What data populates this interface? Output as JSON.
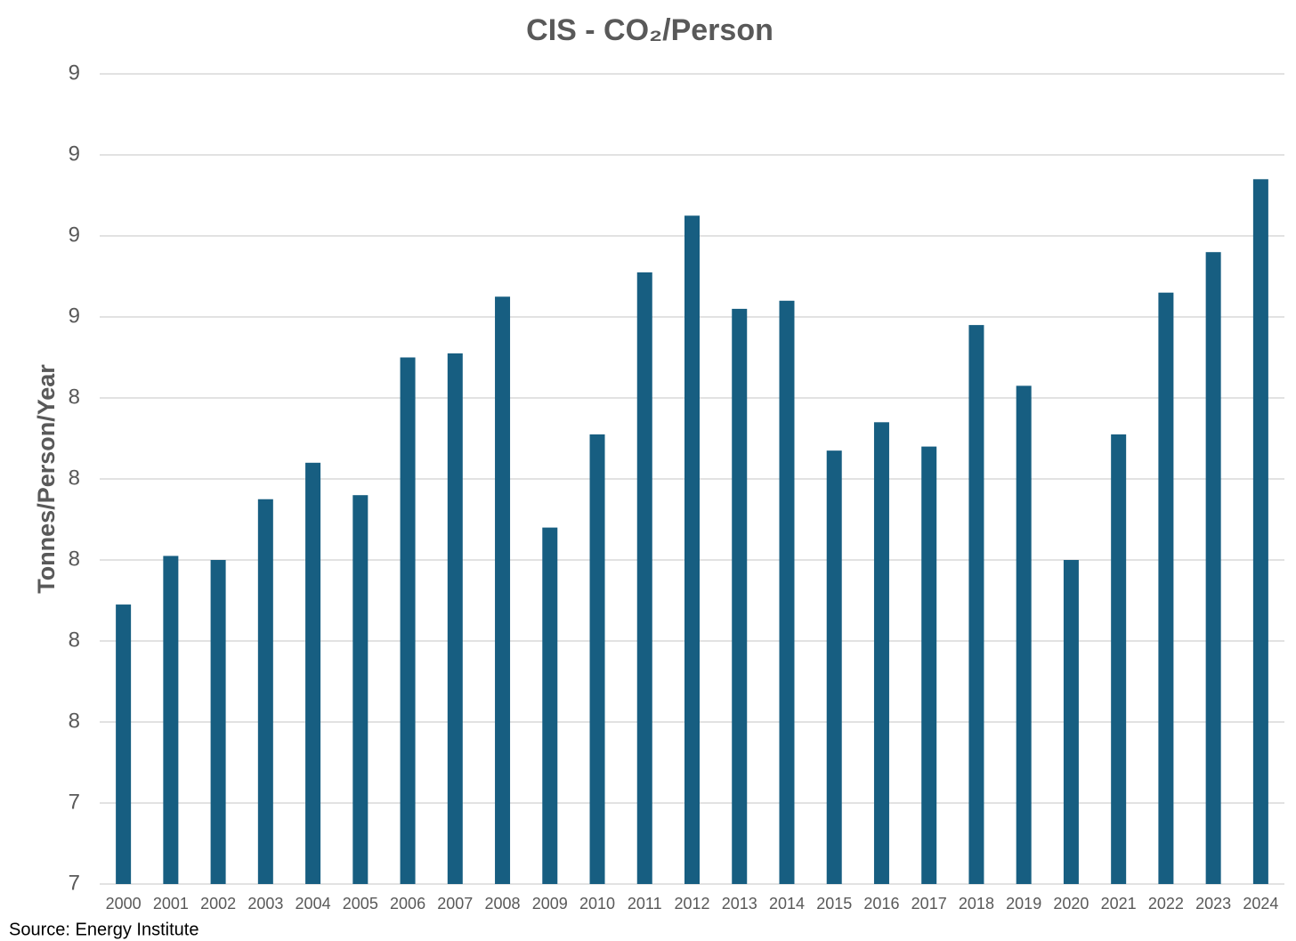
{
  "chart_data": {
    "type": "bar",
    "title": "CIS - CO₂/Person",
    "y_label": "Tonnes/Person/Year",
    "source": "Source: Energy Institute",
    "categories": [
      "2000",
      "2001",
      "2002",
      "2003",
      "2004",
      "2005",
      "2006",
      "2007",
      "2008",
      "2009",
      "2010",
      "2011",
      "2012",
      "2013",
      "2014",
      "2015",
      "2016",
      "2017",
      "2018",
      "2019",
      "2020",
      "2021",
      "2022",
      "2023",
      "2024"
    ],
    "values": [
      7.79,
      7.91,
      7.9,
      8.05,
      8.14,
      8.06,
      8.4,
      8.41,
      8.55,
      7.98,
      8.21,
      8.61,
      8.75,
      8.52,
      8.54,
      8.17,
      8.24,
      8.18,
      8.48,
      8.33,
      7.9,
      8.21,
      8.56,
      8.66,
      8.84
    ],
    "color": "#175e81",
    "ylim": [
      7.1,
      9.1
    ],
    "yticks": [
      {
        "value": 7.1,
        "label": "7"
      },
      {
        "value": 7.3,
        "label": "7"
      },
      {
        "value": 7.5,
        "label": "8"
      },
      {
        "value": 7.7,
        "label": "8"
      },
      {
        "value": 7.9,
        "label": "8"
      },
      {
        "value": 8.1,
        "label": "8"
      },
      {
        "value": 8.3,
        "label": "8"
      },
      {
        "value": 8.5,
        "label": "9"
      },
      {
        "value": 8.7,
        "label": "9"
      },
      {
        "value": 8.9,
        "label": "9"
      },
      {
        "value": 9.1,
        "label": "9"
      }
    ],
    "grid": true
  }
}
